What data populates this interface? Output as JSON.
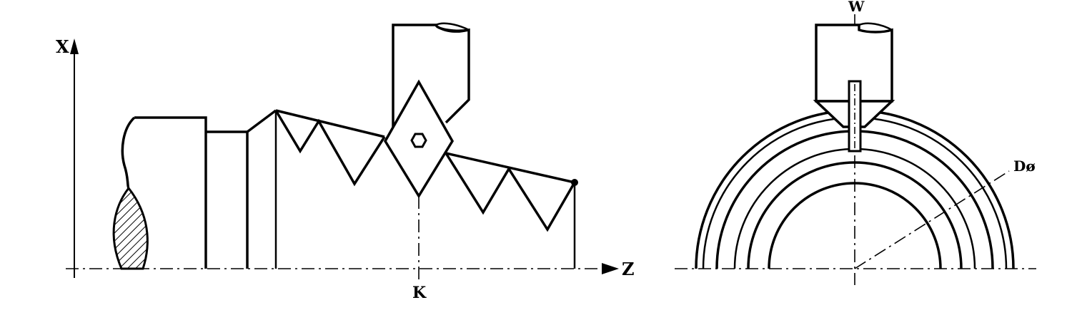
{
  "left_view": {
    "x_axis_label": "X",
    "z_axis_label": "Z",
    "k_label": "K"
  },
  "right_view": {
    "w_label": "W",
    "d_label": "Dø"
  }
}
